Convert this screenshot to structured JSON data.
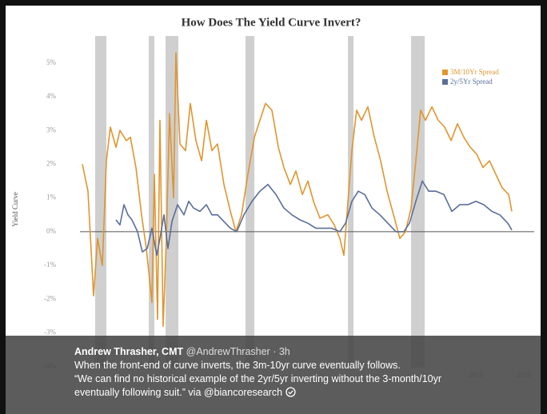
{
  "chart_data": {
    "type": "line",
    "title": "How Does The Yield Curve Invert?",
    "y_label": "Yield Curve",
    "xlim": [
      1973.75,
      2021.08
    ],
    "xticks": [
      2015,
      2020
    ],
    "ylim": [
      -4.03,
      5.8
    ],
    "yticks": [
      {
        "value": -4,
        "label": "-4%"
      },
      {
        "value": -3,
        "label": "-3%"
      },
      {
        "value": -2,
        "label": "-2%"
      },
      {
        "value": -1,
        "label": "-1%"
      },
      {
        "value": 0,
        "label": "0%"
      },
      {
        "value": 1,
        "label": "1%"
      },
      {
        "value": 2,
        "label": "2%"
      },
      {
        "value": 3,
        "label": "3%"
      },
      {
        "value": 4,
        "label": "4%"
      },
      {
        "value": 5,
        "label": "5%"
      }
    ],
    "grid": false,
    "legend": "top-right",
    "shade_color": "#cfcfcf",
    "shaded_ranges": [
      [
        1975.33,
        1976.5
      ],
      [
        1980.92,
        1981.5
      ],
      [
        1982.67,
        1984.0
      ],
      [
        1991.0,
        1991.92
      ],
      [
        2001.67,
        2002.25
      ],
      [
        2008.25,
        2009.67
      ]
    ],
    "series": [
      {
        "name": "3M/10Yr Spread",
        "color": "#e0952e",
        "x": [
          1974.0,
          1974.58,
          1975.17,
          1975.58,
          1976.08,
          1976.5,
          1976.92,
          1977.5,
          1977.92,
          1978.58,
          1979.0,
          1979.58,
          1980.17,
          1980.67,
          1981.25,
          1981.5,
          1981.83,
          1982.08,
          1982.42,
          1982.75,
          1983.08,
          1983.5,
          1983.75,
          1984.17,
          1984.75,
          1985.25,
          1985.83,
          1986.42,
          1986.92,
          1987.5,
          1988.08,
          1988.75,
          1989.42,
          1990.0,
          1990.58,
          1991.25,
          1991.92,
          1992.5,
          1993.08,
          1993.75,
          1994.42,
          1995.0,
          1995.67,
          1996.25,
          1996.92,
          1997.5,
          1998.08,
          1998.75,
          1999.58,
          2000.25,
          2000.83,
          2001.25,
          2001.67,
          2002.08,
          2002.58,
          2003.08,
          2003.75,
          2004.42,
          2005.08,
          2005.75,
          2006.42,
          2007.08,
          2007.67,
          2008.25,
          2008.75,
          2009.25,
          2009.75,
          2010.42,
          2011.08,
          2011.75,
          2012.42,
          2013.08,
          2013.75,
          2014.42,
          2015.08,
          2015.75,
          2016.42,
          2017.08,
          2017.75,
          2018.42,
          2018.75
        ],
        "values": [
          2.0,
          1.2,
          -1.9,
          -0.2,
          -1.0,
          2.1,
          3.1,
          2.5,
          3.0,
          2.7,
          2.8,
          1.9,
          0.5,
          -0.5,
          -2.1,
          1.7,
          -2.6,
          3.3,
          -2.8,
          -0.2,
          3.5,
          1.0,
          5.3,
          2.6,
          2.4,
          3.8,
          2.7,
          2.1,
          3.3,
          2.4,
          2.6,
          1.4,
          0.6,
          0.0,
          0.5,
          1.7,
          2.8,
          3.3,
          3.8,
          3.6,
          2.5,
          1.9,
          1.4,
          1.8,
          1.1,
          1.5,
          0.9,
          0.4,
          0.5,
          0.2,
          -0.2,
          -0.7,
          0.9,
          2.4,
          3.6,
          3.3,
          3.7,
          2.8,
          2.1,
          1.2,
          0.5,
          -0.2,
          0.0,
          0.7,
          2.1,
          3.6,
          3.3,
          3.7,
          3.3,
          3.1,
          2.7,
          3.2,
          2.8,
          2.5,
          2.3,
          1.9,
          2.1,
          1.7,
          1.3,
          1.1,
          0.6
        ]
      },
      {
        "name": "2y/5Yr Spread",
        "color": "#5a6e9a",
        "x": [
          1977.5,
          1977.92,
          1978.33,
          1978.75,
          1979.17,
          1979.75,
          1980.25,
          1980.75,
          1981.25,
          1981.75,
          1982.08,
          1982.5,
          1982.92,
          1983.33,
          1983.92,
          1984.58,
          1985.08,
          1985.58,
          1986.25,
          1986.92,
          1987.5,
          1988.08,
          1988.75,
          1989.42,
          1990.08,
          1990.83,
          1991.67,
          1992.5,
          1993.33,
          1994.17,
          1995.0,
          1995.83,
          1996.67,
          1997.5,
          1998.33,
          1999.17,
          2000.0,
          2000.83,
          2001.42,
          2002.08,
          2002.75,
          2003.42,
          2004.17,
          2005.0,
          2005.83,
          2006.67,
          2007.5,
          2008.08,
          2008.75,
          2009.42,
          2010.08,
          2010.83,
          2011.67,
          2012.5,
          2013.33,
          2014.17,
          2015.0,
          2015.83,
          2016.67,
          2017.5,
          2018.33,
          2018.75
        ],
        "values": [
          0.35,
          0.2,
          0.8,
          0.5,
          0.35,
          0.0,
          -0.6,
          -0.5,
          0.1,
          -0.7,
          -0.2,
          0.5,
          -0.5,
          0.3,
          0.8,
          0.5,
          0.9,
          0.7,
          0.6,
          0.8,
          0.5,
          0.5,
          0.3,
          0.1,
          0.0,
          0.5,
          0.9,
          1.2,
          1.4,
          1.1,
          0.7,
          0.5,
          0.35,
          0.25,
          0.1,
          0.1,
          0.1,
          0.0,
          0.25,
          0.9,
          1.2,
          1.1,
          0.7,
          0.5,
          0.25,
          0.0,
          0.0,
          0.25,
          0.9,
          1.5,
          1.2,
          1.2,
          1.1,
          0.6,
          0.8,
          0.8,
          0.9,
          0.8,
          0.6,
          0.5,
          0.25,
          0.05
        ]
      }
    ]
  },
  "tweet": {
    "name": "Andrew Thrasher, CMT",
    "handle": "@AndrewThrasher",
    "time": "· 3h",
    "lines": [
      "When the front-end of curve inverts, the 3m-10yr curve eventually follows.",
      "“We can find no historical example of the 2yr/5yr inverting without the 3-month/10yr",
      "eventually following suit.” via @biancoresearch"
    ]
  }
}
